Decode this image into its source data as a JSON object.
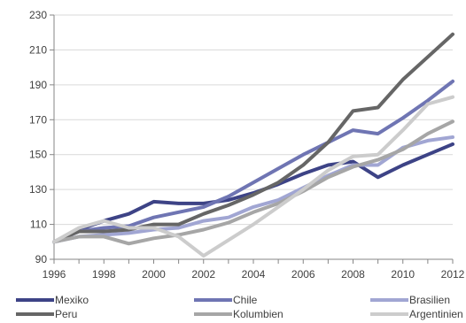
{
  "chart_data": {
    "type": "line",
    "title": "",
    "xlabel": "",
    "ylabel": "",
    "x": [
      1996,
      1997,
      1998,
      1999,
      2000,
      2001,
      2002,
      2003,
      2004,
      2005,
      2006,
      2007,
      2008,
      2009,
      2010,
      2011,
      2012
    ],
    "xticks": [
      "1996",
      "1998",
      "2000",
      "2002",
      "2004",
      "2006",
      "2008",
      "2010",
      "2012"
    ],
    "yticks": [
      "90",
      "110",
      "130",
      "150",
      "170",
      "190",
      "210",
      "230"
    ],
    "xlim": [
      1996,
      2012
    ],
    "ylim": [
      90,
      230
    ],
    "grid": true,
    "legend_position": "bottom",
    "series": [
      {
        "name": "Mexiko",
        "color": "#3d4386",
        "values": [
          100,
          107,
          112,
          116,
          123,
          122,
          122,
          124,
          128,
          133,
          139,
          144,
          146,
          137,
          144,
          150,
          156
        ]
      },
      {
        "name": "Chile",
        "color": "#6f75b3",
        "values": [
          100,
          106,
          108,
          109,
          114,
          117,
          120,
          126,
          134,
          142,
          150,
          157,
          164,
          162,
          171,
          181,
          192
        ]
      },
      {
        "name": "Brasilien",
        "color": "#a1a6d3",
        "values": [
          100,
          103,
          104,
          105,
          107,
          108,
          112,
          114,
          120,
          124,
          131,
          138,
          144,
          144,
          154,
          158,
          160
        ]
      },
      {
        "name": "Peru",
        "color": "#666666",
        "values": [
          100,
          106,
          106,
          107,
          110,
          110,
          116,
          121,
          127,
          134,
          144,
          157,
          175,
          177,
          193,
          206,
          219
        ]
      },
      {
        "name": "Kolumbien",
        "color": "#a6a6a6",
        "values": [
          100,
          103,
          103,
          99,
          102,
          104,
          107,
          111,
          117,
          122,
          129,
          137,
          143,
          147,
          153,
          162,
          169
        ]
      },
      {
        "name": "Argentinien",
        "color": "#cccccc",
        "values": [
          100,
          108,
          112,
          108,
          108,
          103,
          92,
          101,
          110,
          120,
          130,
          141,
          149,
          150,
          164,
          179,
          183
        ]
      }
    ]
  }
}
